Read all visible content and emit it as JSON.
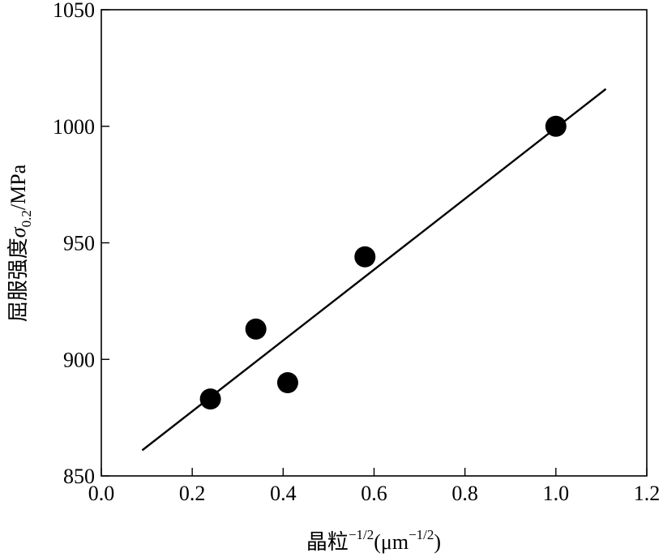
{
  "chart_data": {
    "type": "scatter",
    "title": "",
    "xlabel": {
      "prefix": "晶粒",
      "prefix_exp": "−1/2",
      "unit_open": "(μm",
      "unit_exp": "−1/2",
      "unit_close": ")"
    },
    "ylabel": {
      "prefix": "屈服强度",
      "symbol": "σ",
      "symbol_sub": "0.2",
      "unit": "/MPa"
    },
    "xlim": [
      0.0,
      1.2
    ],
    "ylim": [
      850,
      1050
    ],
    "x_ticks": [
      "0.0",
      "0.2",
      "0.4",
      "0.6",
      "0.8",
      "1.0",
      "1.2"
    ],
    "y_ticks": [
      "850",
      "900",
      "950",
      "1000",
      "1050"
    ],
    "grid": false,
    "legend": "none",
    "points": [
      {
        "x": 0.24,
        "y": 883
      },
      {
        "x": 0.34,
        "y": 913
      },
      {
        "x": 0.41,
        "y": 890
      },
      {
        "x": 0.58,
        "y": 944
      },
      {
        "x": 1.0,
        "y": 1000
      }
    ],
    "fit_line": {
      "x": [
        0.09,
        1.11
      ],
      "y": [
        861,
        1016
      ]
    },
    "colors": {
      "marker": "#000000",
      "line": "#000000",
      "axes": "#000000"
    }
  }
}
